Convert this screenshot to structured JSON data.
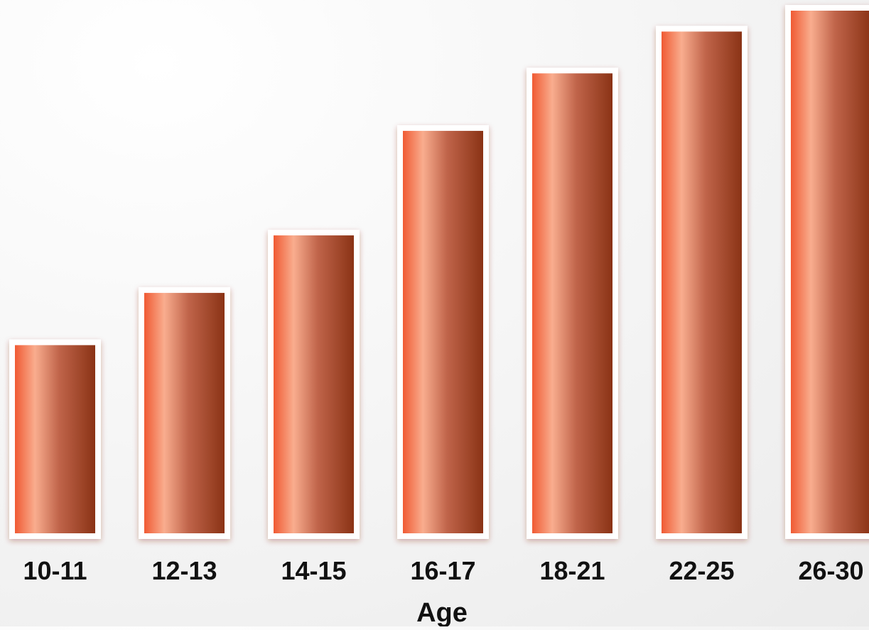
{
  "chart_data": {
    "type": "bar",
    "categories": [
      "10-11",
      "12-13",
      "14-15",
      "16-17",
      "18-21",
      "22-25",
      "26-30"
    ],
    "values": [
      36,
      46,
      57,
      77,
      88,
      96,
      100
    ],
    "title": "",
    "xlabel": "Age",
    "ylabel": "",
    "ylim": [
      0,
      100
    ],
    "grid": false,
    "legend": "none",
    "colors": {
      "bar_dark": "#8a3315",
      "bar_mid": "#c0644a",
      "bar_light": "#f9ad8e",
      "bar_edge": "#f05a33",
      "bar_frame": "#ffffff",
      "text": "#111111"
    }
  }
}
